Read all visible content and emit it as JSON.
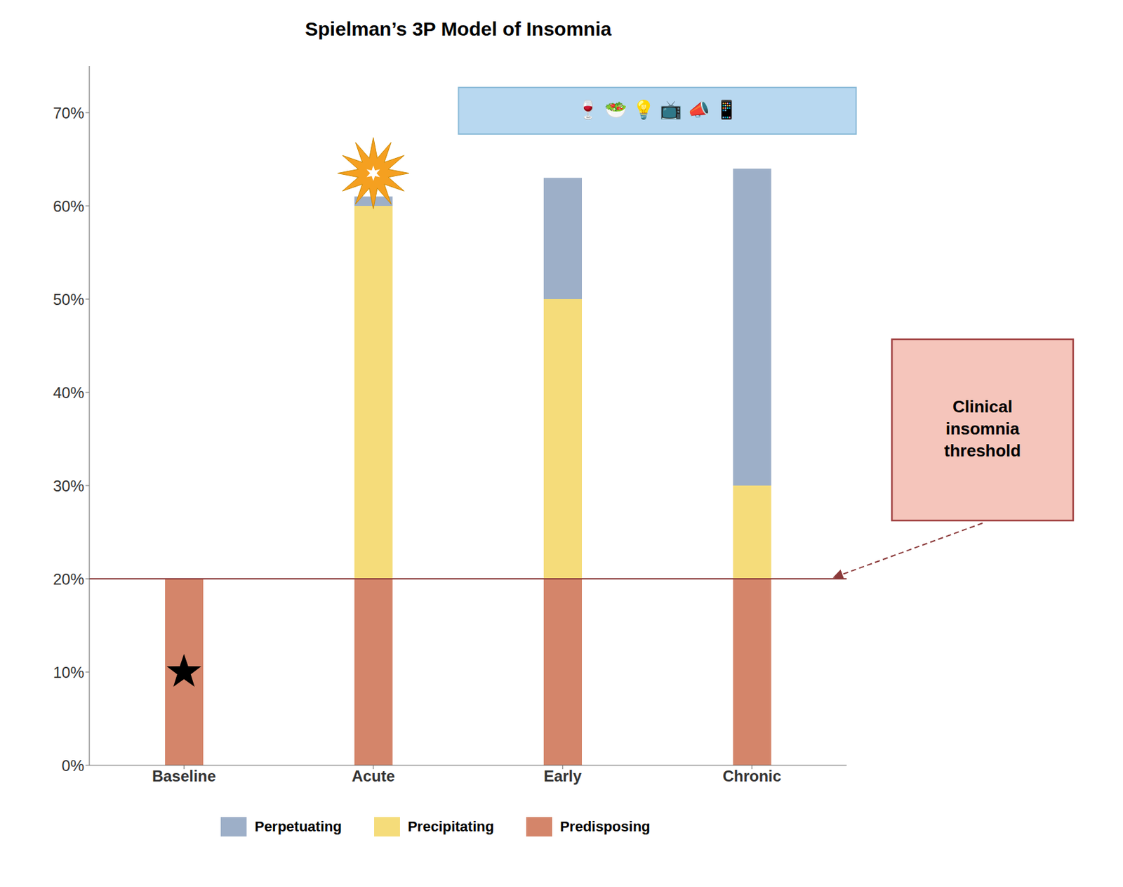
{
  "chart_data": {
    "type": "bar",
    "title": "Spielman’s 3P Model of Insomnia",
    "categories": [
      "Baseline",
      "Acute",
      "Early",
      "Chronic"
    ],
    "stacked": true,
    "series": [
      {
        "name": "Predisposing",
        "color": "#D4856A",
        "values": [
          20,
          20,
          20,
          20
        ]
      },
      {
        "name": "Precipitating",
        "color": "#F5DC7A",
        "values": [
          0,
          40,
          30,
          10
        ]
      },
      {
        "name": "Perpetuating",
        "color": "#9DAFC8",
        "values": [
          0,
          1,
          13,
          34
        ]
      }
    ],
    "ylim": [
      0,
      75
    ],
    "yticks": [
      {
        "value": 0,
        "label": "0%"
      },
      {
        "value": 10,
        "label": "10%"
      },
      {
        "value": 20,
        "label": "20%"
      },
      {
        "value": 30,
        "label": "30%"
      },
      {
        "value": 40,
        "label": "40%"
      },
      {
        "value": 50,
        "label": "50%"
      },
      {
        "value": 60,
        "label": "60%"
      },
      {
        "value": 70,
        "label": "70%"
      }
    ],
    "grid": false,
    "legend": "bottom",
    "annotations": [
      {
        "text": "Clinical\ninsomnia\nthreshold",
        "y": 20,
        "color": "#8B3A3A"
      },
      {
        "text": "🍷  🥗  💡  📺  📣  📱",
        "x": "Early",
        "y": 70.2
      }
    ],
    "markers": [
      {
        "x": "Baseline",
        "y": 10,
        "marker": "star",
        "color": "black"
      },
      {
        "x": "Acute",
        "y": 63.5,
        "marker": "starburst",
        "color": "#F5A020"
      }
    ]
  }
}
